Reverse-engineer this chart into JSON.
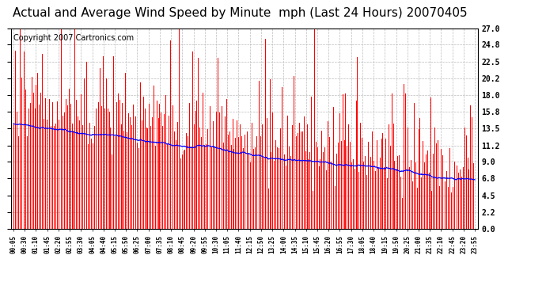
{
  "title": "Actual and Average Wind Speed by Minute  mph (Last 24 Hours) 20070405",
  "copyright_text": "Copyright 2007 Cartronics.com",
  "yticks": [
    0.0,
    2.2,
    4.5,
    6.8,
    9.0,
    11.2,
    13.5,
    15.8,
    18.0,
    20.2,
    22.5,
    24.8,
    27.0
  ],
  "xtick_labels": [
    "00:05",
    "00:30",
    "01:10",
    "01:45",
    "02:20",
    "02:55",
    "03:30",
    "04:05",
    "04:40",
    "05:15",
    "05:50",
    "06:25",
    "07:00",
    "07:35",
    "08:10",
    "08:45",
    "09:20",
    "09:55",
    "10:30",
    "11:05",
    "11:40",
    "12:15",
    "12:50",
    "13:25",
    "14:00",
    "14:35",
    "15:10",
    "15:45",
    "16:20",
    "16:55",
    "17:30",
    "18:05",
    "18:40",
    "19:15",
    "19:50",
    "20:25",
    "21:00",
    "21:35",
    "22:10",
    "22:45",
    "23:20",
    "23:55"
  ],
  "actual_color": "#FF0000",
  "avg_color": "#0000FF",
  "bg_color": "#FFFFFF",
  "plot_bg_color": "#FFFFFF",
  "grid_color": "#BBBBBB",
  "title_fontsize": 11,
  "copyright_fontsize": 7,
  "ylim": [
    0.0,
    27.0
  ],
  "n_points": 1440,
  "avg_seed": 10,
  "actual_seed": 99
}
